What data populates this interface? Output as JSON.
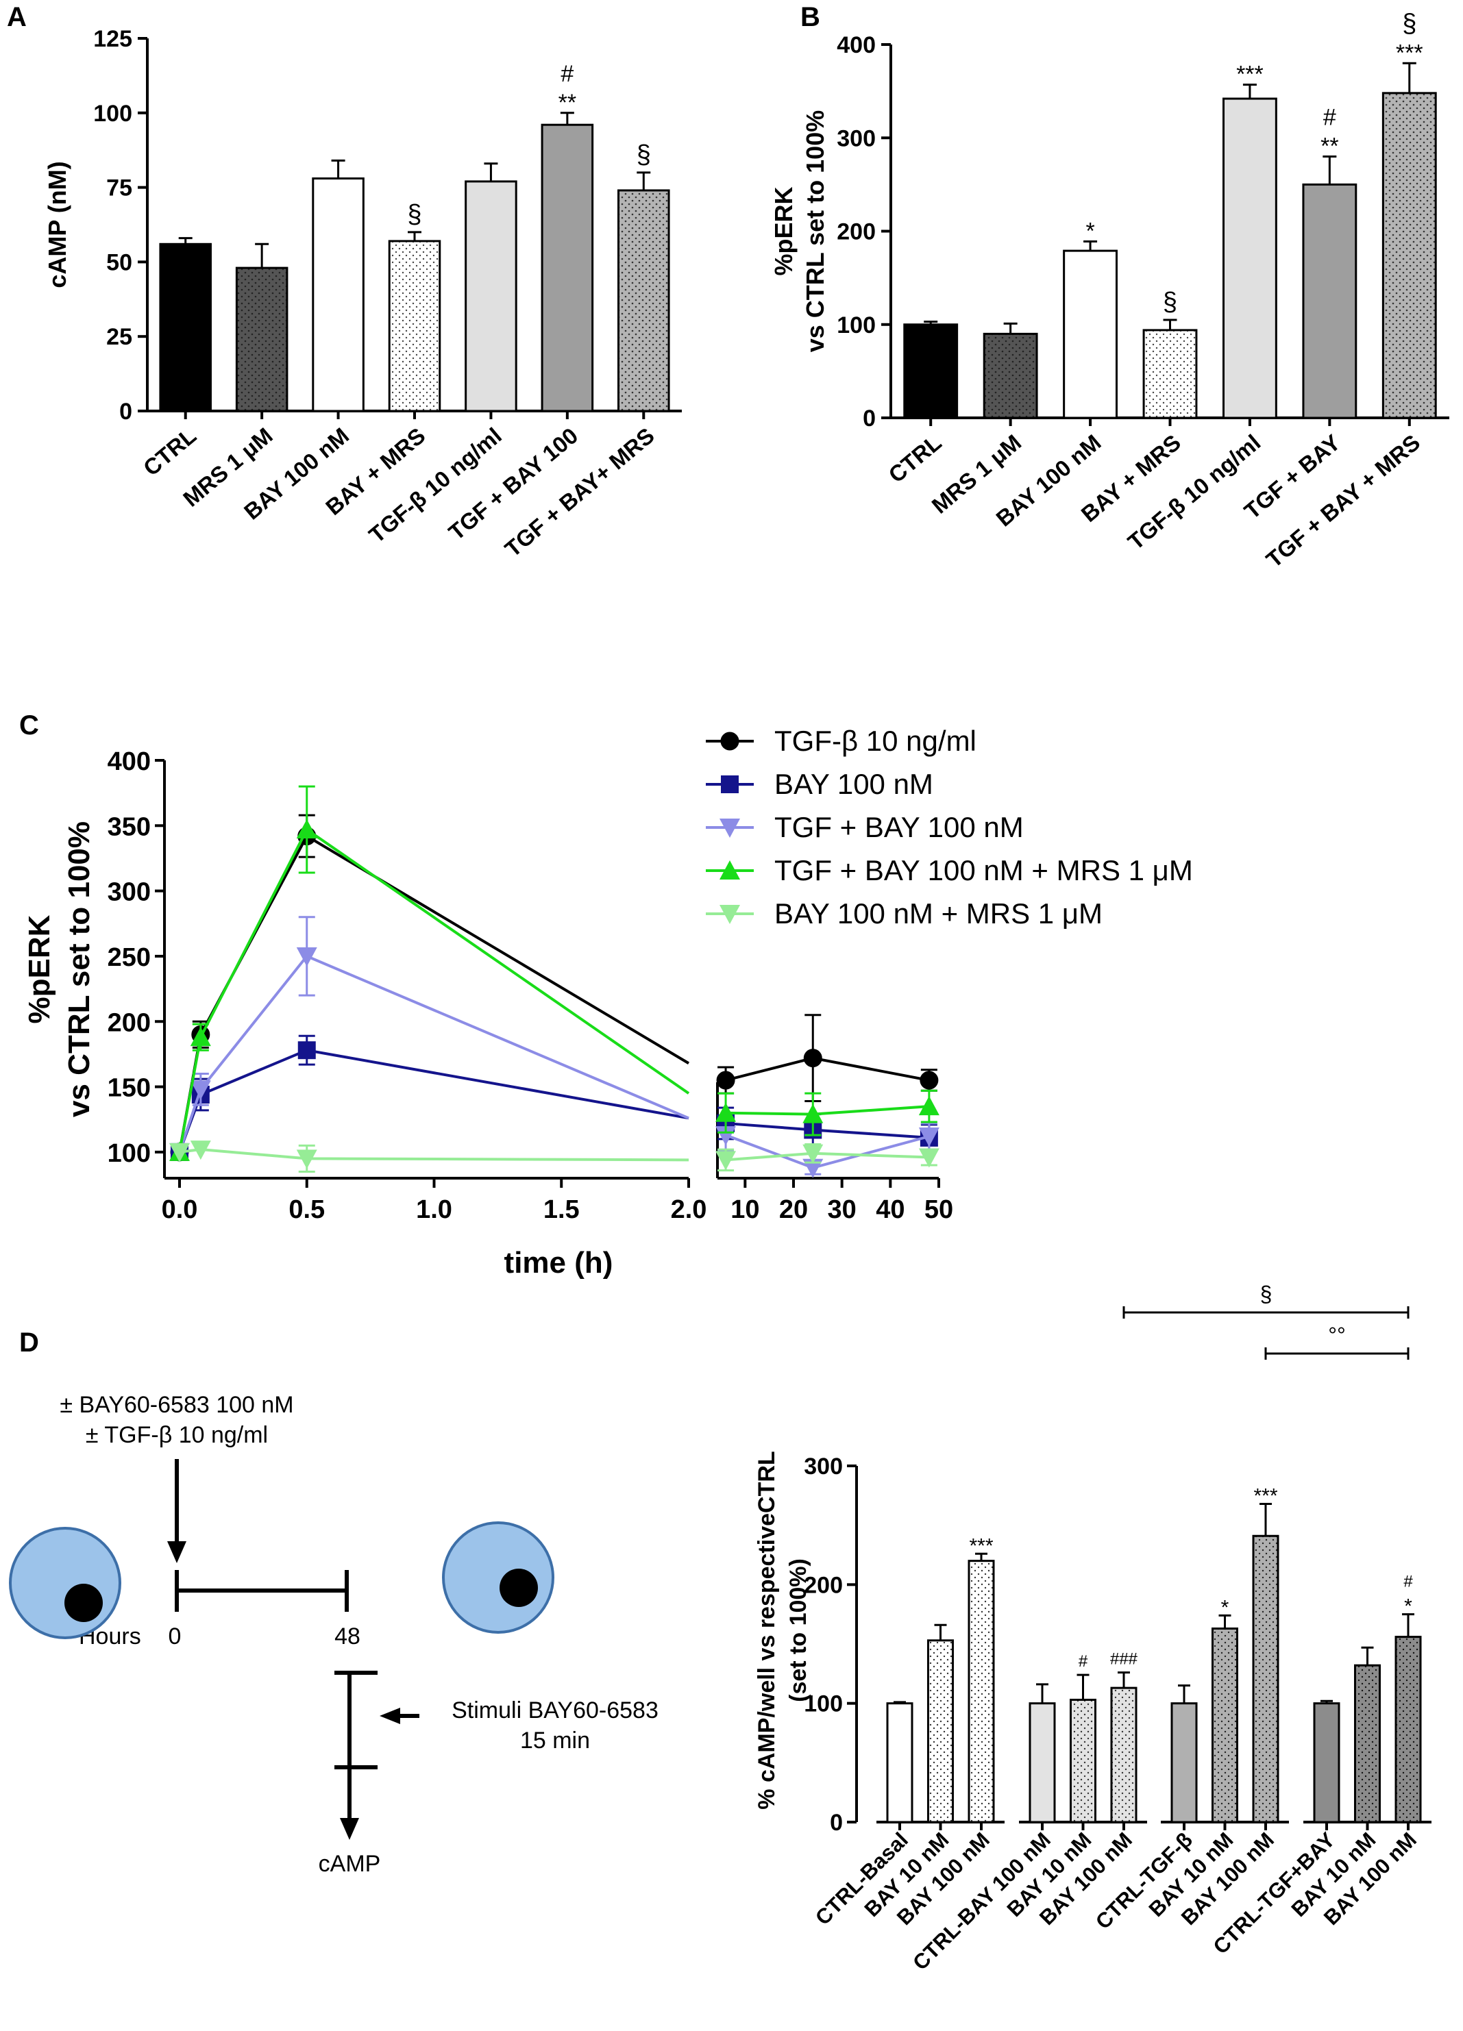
{
  "panels": {
    "A": {
      "letter": "A"
    },
    "B": {
      "letter": "B"
    },
    "C": {
      "letter": "C"
    },
    "D": {
      "letter": "D"
    }
  },
  "colors": {
    "black": "#000000",
    "dark_gray": "#555555",
    "white": "#ffffff",
    "light_gray": "#e0e0e0",
    "mid_gray": "#9e9e9e",
    "gray_dots": "#b4b4b4",
    "navy": "#14148c",
    "lavender": "#8c8ce6",
    "green": "#19dc19",
    "light_green": "#96ec96",
    "cell_blue": "#9cc3ea"
  },
  "chart_data": [
    {
      "id": "A",
      "type": "bar",
      "title": "",
      "ylabel": "cAMP (nM)",
      "xlabel": "",
      "ylim": [
        0,
        125
      ],
      "yticks": [
        0,
        25,
        50,
        75,
        100,
        125
      ],
      "categories": [
        "CTRL",
        "MRS 1 μM",
        "BAY 100 nM",
        "BAY + MRS",
        "TGF-β 10 ng/ml",
        "TGF + BAY 100",
        "TGF + BAY+ MRS"
      ],
      "values": [
        56,
        48,
        78,
        57,
        77,
        96,
        74
      ],
      "errors": [
        2,
        8,
        6,
        3,
        6,
        4,
        6
      ],
      "fills": [
        "solid_black",
        "solid_darkgray_dots",
        "white",
        "white_dots",
        "light_gray",
        "mid_gray",
        "gray_dots"
      ],
      "annotations": [
        {
          "bar": 3,
          "lines": [
            "§"
          ]
        },
        {
          "bar": 5,
          "lines": [
            "#",
            "**"
          ]
        },
        {
          "bar": 6,
          "lines": [
            "§"
          ]
        }
      ]
    },
    {
      "id": "B",
      "type": "bar",
      "title": "",
      "ylabel_lines": [
        "%pERK",
        "vs CTRL set to 100%"
      ],
      "xlabel": "",
      "ylim": [
        0,
        400
      ],
      "yticks": [
        0,
        100,
        200,
        300,
        400
      ],
      "categories": [
        "CTRL",
        "MRS 1 μM",
        "BAY 100 nM",
        "BAY + MRS",
        "TGF-β 10 ng/ml",
        "TGF + BAY",
        "TGF + BAY + MRS"
      ],
      "values": [
        100,
        90,
        179,
        94,
        342,
        250,
        348
      ],
      "errors": [
        3,
        11,
        10,
        11,
        15,
        30,
        32
      ],
      "fills": [
        "solid_black",
        "solid_darkgray_dots",
        "white",
        "white_dots",
        "light_gray",
        "mid_gray",
        "gray_dots"
      ],
      "annotations": [
        {
          "bar": 2,
          "lines": [
            "*"
          ]
        },
        {
          "bar": 3,
          "lines": [
            "§"
          ]
        },
        {
          "bar": 4,
          "lines": [
            "***"
          ]
        },
        {
          "bar": 5,
          "lines": [
            "#",
            "**"
          ]
        },
        {
          "bar": 6,
          "lines": [
            "§",
            "***"
          ]
        }
      ]
    },
    {
      "id": "C",
      "type": "line",
      "title": "",
      "ylabel_lines": [
        "%pERK",
        "vs CTRL set to 100%"
      ],
      "xlabel": "time (h)",
      "ylim": [
        80,
        400
      ],
      "yticks": [
        100,
        150,
        200,
        250,
        300,
        350,
        400
      ],
      "x_segment1": {
        "range": [
          0,
          2
        ],
        "ticks": [
          "0.0",
          "0.5",
          "1.0",
          "1.5",
          "2.0"
        ],
        "tick_values": [
          0,
          0.5,
          1,
          1.5,
          2
        ]
      },
      "x_segment2": {
        "range": [
          5,
          50
        ],
        "ticks": [
          "10",
          "20",
          "30",
          "40",
          "50"
        ],
        "tick_values": [
          10,
          20,
          30,
          40,
          50
        ]
      },
      "series": [
        {
          "name": "TGF-β 10 ng/ml",
          "color": "#000000",
          "marker": "circle",
          "seg1": [
            [
              0,
              100,
              0
            ],
            [
              0.083,
              190,
              10
            ],
            [
              0.5,
              342,
              16
            ]
          ],
          "seg1_end": 168,
          "seg2": [
            [
              6,
              155,
              10
            ],
            [
              24,
              172,
              33
            ],
            [
              48,
              155,
              8
            ]
          ],
          "seg2_start": 155
        },
        {
          "name": "BAY 100 nM",
          "color": "#14148c",
          "marker": "square",
          "seg1": [
            [
              0,
              100,
              0
            ],
            [
              0.083,
              144,
              12
            ],
            [
              0.5,
              178,
              11
            ]
          ],
          "seg1_end": 126,
          "seg2": [
            [
              6,
              122,
              12
            ],
            [
              24,
              117,
              12
            ],
            [
              48,
              111,
              10
            ]
          ],
          "seg2_start": 122
        },
        {
          "name": "TGF + BAY 100 nM",
          "color": "#8c8ce6",
          "marker": "triangle-down",
          "seg1": [
            [
              0,
              100,
              0
            ],
            [
              0.083,
              148,
              12
            ],
            [
              0.5,
              250,
              30
            ]
          ],
          "seg1_end": 126,
          "seg2": [
            [
              6,
              113,
              12
            ],
            [
              24,
              88,
              5
            ],
            [
              48,
              112,
              10
            ]
          ],
          "seg2_start": 113
        },
        {
          "name": "TGF + BAY 100 nM + MRS 1 μM",
          "color": "#19dc19",
          "marker": "triangle-up",
          "seg1": [
            [
              0,
              100,
              0
            ],
            [
              0.083,
              188,
              10
            ],
            [
              0.5,
              347,
              33
            ]
          ],
          "seg1_end": 145,
          "seg2": [
            [
              6,
              130,
              15
            ],
            [
              24,
              129,
              16
            ],
            [
              48,
              135,
              12
            ]
          ],
          "seg2_start": 130
        },
        {
          "name": "BAY 100 nM + MRS 1 μM",
          "color": "#96ec96",
          "marker": "triangle-down",
          "seg1": [
            [
              0,
              100,
              0
            ],
            [
              0.083,
              102,
              0
            ],
            [
              0.5,
              95,
              10
            ]
          ],
          "seg1_end": 94,
          "seg2": [
            [
              6,
              94,
              8
            ],
            [
              24,
              99,
              7
            ],
            [
              48,
              96,
              6
            ]
          ],
          "seg2_start": 94
        }
      ]
    },
    {
      "id": "D",
      "type": "bar",
      "title": "",
      "ylabel_lines": [
        "% cAMP/well vs respectiveCTRL",
        "(set to 100%)"
      ],
      "xlabel": "",
      "ylim": [
        0,
        300
      ],
      "yticks": [
        0,
        100,
        200,
        300
      ],
      "groups": [
        {
          "fill": "#ffffff",
          "bars": [
            {
              "label": "CTRL-Basal",
              "value": 100,
              "error": 1,
              "dots": false,
              "annot": []
            },
            {
              "label": "BAY 10 nM",
              "value": 153,
              "error": 13,
              "dots": true,
              "annot": []
            },
            {
              "label": "BAY 100 nM",
              "value": 220,
              "error": 6,
              "dots": true,
              "annot": [
                "***"
              ]
            }
          ]
        },
        {
          "fill": "#e3e3e3",
          "bars": [
            {
              "label": "CTRL-BAY 100 nM",
              "value": 100,
              "error": 16,
              "dots": false,
              "annot": []
            },
            {
              "label": "BAY 10 nM",
              "value": 103,
              "error": 21,
              "dots": true,
              "annot": [
                "#"
              ]
            },
            {
              "label": "BAY 100 nM",
              "value": 113,
              "error": 13,
              "dots": true,
              "annot": [
                "###"
              ]
            }
          ]
        },
        {
          "fill": "#b0b0b0",
          "bars": [
            {
              "label": "CTRL-TGF-β",
              "value": 100,
              "error": 15,
              "dots": false,
              "annot": []
            },
            {
              "label": "BAY 10 nM",
              "value": 163,
              "error": 11,
              "dots": true,
              "annot": [
                "*"
              ]
            },
            {
              "label": "BAY 100 nM",
              "value": 241,
              "error": 27,
              "dots": true,
              "annot": [
                "***"
              ]
            }
          ]
        },
        {
          "fill": "#8c8c8c",
          "bars": [
            {
              "label": "CTRL-TGF+BAY",
              "value": 100,
              "error": 2,
              "dots": false,
              "annot": []
            },
            {
              "label": "BAY 10 nM",
              "value": 132,
              "error": 15,
              "dots": true,
              "annot": []
            },
            {
              "label": "BAY 100 nM",
              "value": 156,
              "error": 19,
              "dots": true,
              "annot": [
                "#",
                "*"
              ]
            }
          ]
        }
      ],
      "brackets": [
        {
          "from_bar": 5,
          "to_bar": 11,
          "symbol": "§"
        },
        {
          "from_bar": 8,
          "to_bar": 11,
          "symbol": "°°"
        }
      ]
    }
  ],
  "schematic": {
    "treatment_line1": "± BAY60-6583 100 nM",
    "treatment_line2": "± TGF-β 10 ng/ml",
    "hours_label": "Hours",
    "hour_start": "0",
    "hour_end": "48",
    "stimuli_line1": "Stimuli BAY60-6583",
    "stimuli_line2": "15 min",
    "readout": "cAMP"
  }
}
